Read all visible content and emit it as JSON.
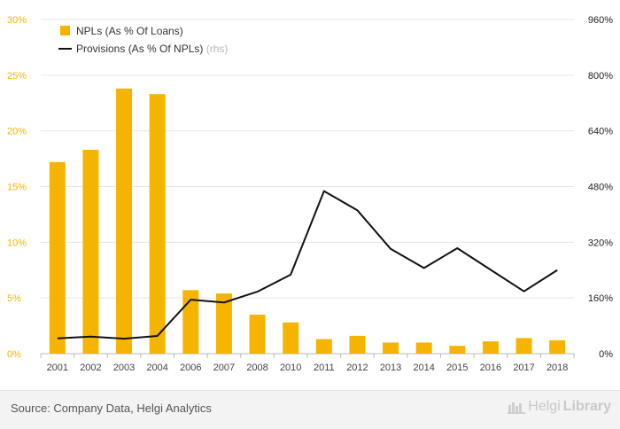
{
  "chart_data": {
    "type": "bar+line",
    "categories": [
      "2001",
      "2002",
      "2003",
      "2004",
      "2006",
      "2007",
      "2008",
      "2010",
      "2011",
      "2012",
      "2013",
      "2014",
      "2015",
      "2016",
      "2017",
      "2018"
    ],
    "series": [
      {
        "name": "NPLs (As % Of Loans)",
        "kind": "bar",
        "axis": "left",
        "color": "#f5b400",
        "values": [
          17.2,
          18.3,
          23.8,
          23.3,
          5.7,
          5.4,
          3.5,
          2.8,
          1.3,
          1.6,
          1.0,
          1.0,
          0.7,
          1.1,
          1.4,
          1.2
        ]
      },
      {
        "name": "Provisions (As % Of NPLs)",
        "name_suffix": "(rhs)",
        "kind": "line",
        "axis": "right",
        "color": "#111111",
        "values": [
          44,
          49,
          43,
          51,
          155,
          147,
          178,
          227,
          467,
          412,
          301,
          246,
          303,
          241,
          179,
          240
        ]
      }
    ],
    "left_axis": {
      "ylim": [
        0,
        30
      ],
      "ticks": [
        "0%",
        "5%",
        "10%",
        "15%",
        "20%",
        "25%",
        "30%"
      ],
      "tick_values": [
        0,
        5,
        10,
        15,
        20,
        25,
        30
      ],
      "color": "#f5b400"
    },
    "right_axis": {
      "ylim": [
        0,
        960
      ],
      "ticks": [
        "0%",
        "160%",
        "320%",
        "480%",
        "640%",
        "800%",
        "960%"
      ],
      "tick_values": [
        0,
        160,
        320,
        480,
        640,
        800,
        960
      ],
      "color": "#222222"
    },
    "legend_position": "top-left",
    "grid": true
  },
  "footer": {
    "source": "Source: Company Data, Helgi Analytics",
    "brand_part1": "Helgi",
    "brand_part2": "Library"
  }
}
